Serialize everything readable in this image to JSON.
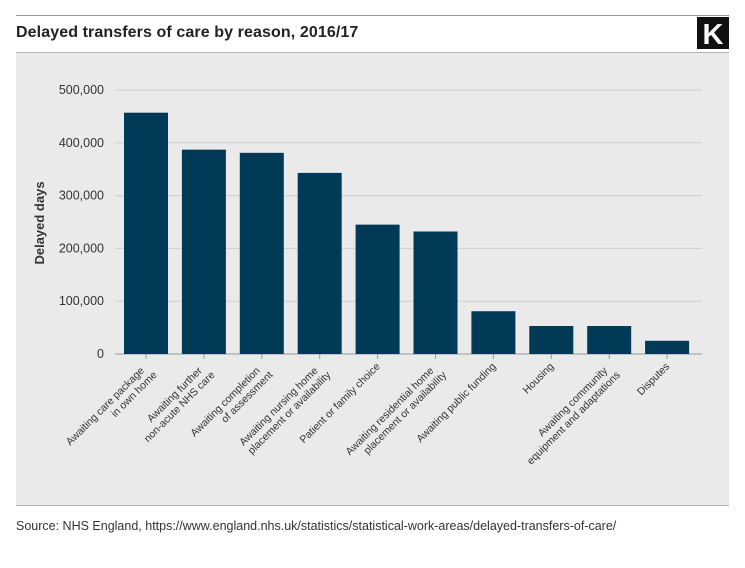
{
  "header": {
    "title": "Delayed transfers of care by reason, 2016/17",
    "logo_letter": "K"
  },
  "footer": {
    "source": "Source: NHS England, https://www.england.nhs.uk/statistics/statistical-work-areas/delayed-transfers-of-care/"
  },
  "colors": {
    "bar": "#003a57",
    "grid": "#cfcfcf",
    "panel": "#e9eae9"
  },
  "chart_data": {
    "type": "bar",
    "title": "Delayed transfers of care by reason, 2016/17",
    "xlabel": "",
    "ylabel": "Delayed days",
    "ylim": [
      0,
      500000
    ],
    "yticks": [
      0,
      100000,
      200000,
      300000,
      400000,
      500000
    ],
    "ytick_labels": [
      "0",
      "100,000",
      "200,000",
      "300,000",
      "400,000",
      "500,000"
    ],
    "grid": true,
    "categories": [
      [
        "Awaiting care package",
        "in own home"
      ],
      [
        "Awaiting further",
        "non-acute NHS care"
      ],
      [
        "Awaiting completion",
        "of assessment"
      ],
      [
        "Awaiting nursing home",
        "placement or availability"
      ],
      [
        "Patient or family choice"
      ],
      [
        "Awaiting residential home",
        "placement or availability"
      ],
      [
        "Awaiting public funding"
      ],
      [
        "Housing"
      ],
      [
        "Awaiting community",
        "equipment and adaptations"
      ],
      [
        "Disputes"
      ]
    ],
    "values": [
      457000,
      387000,
      381000,
      343000,
      245000,
      232000,
      81000,
      53000,
      53000,
      25000
    ]
  }
}
